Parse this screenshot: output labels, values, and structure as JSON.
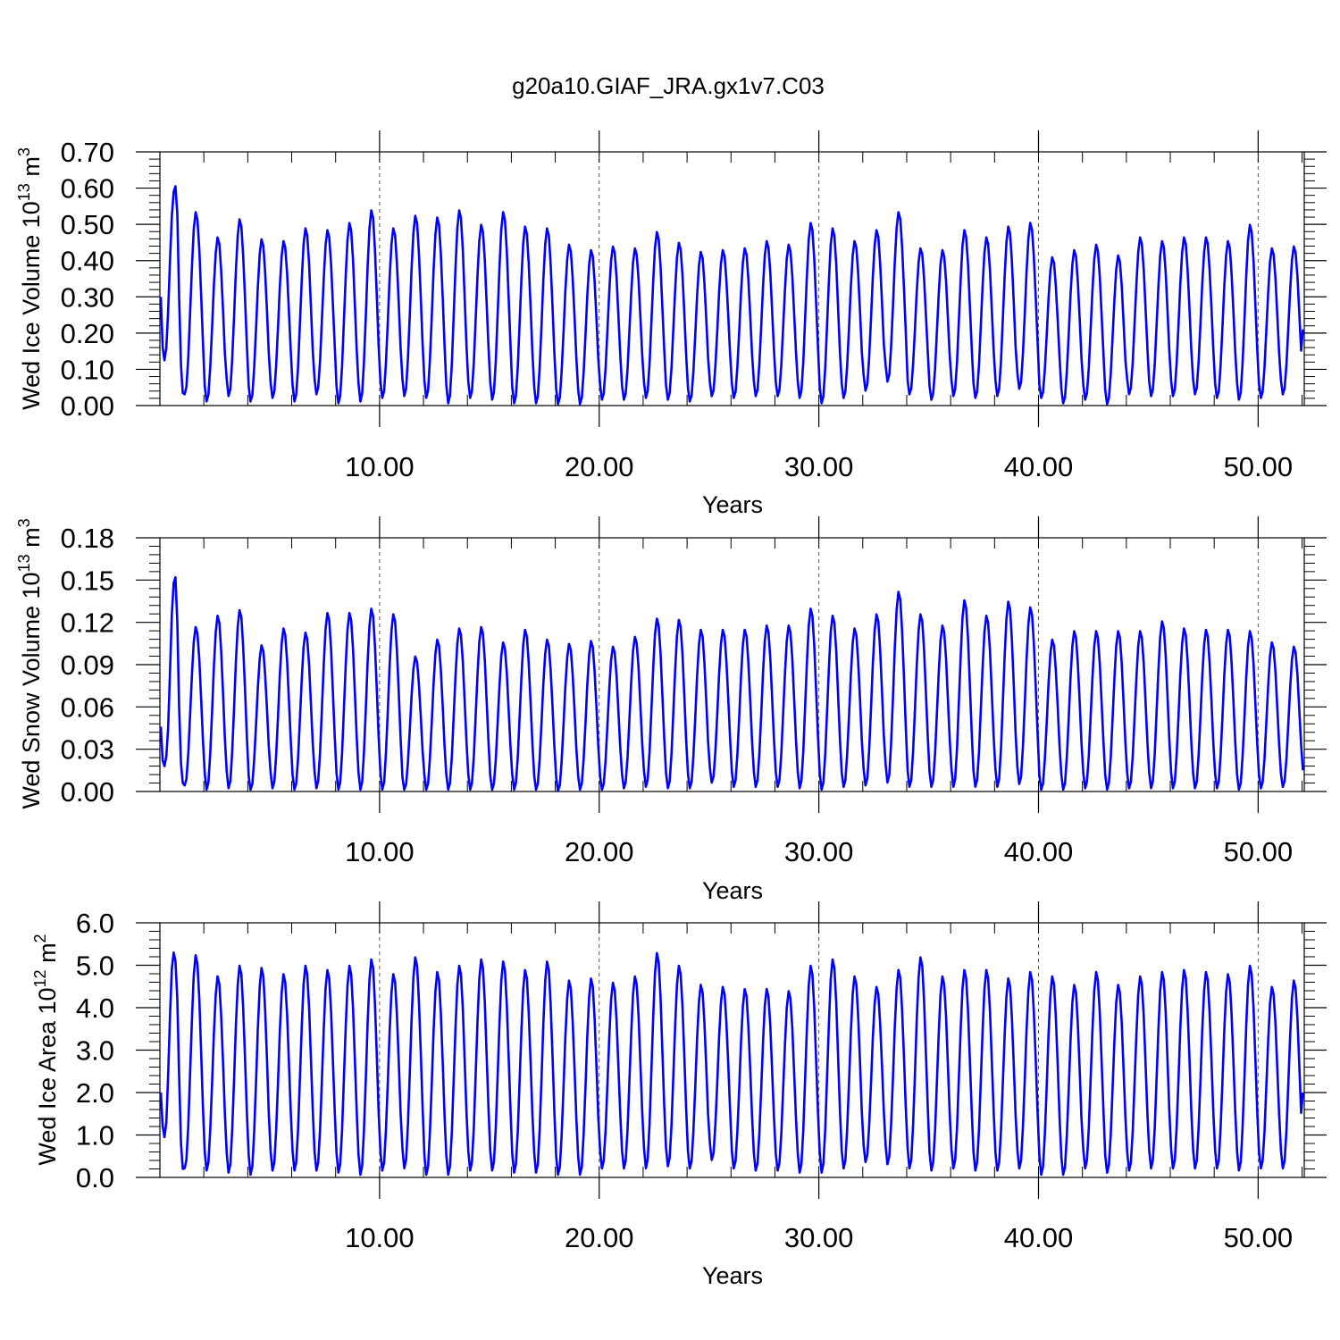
{
  "title": "g20a10.GIAF_JRA.gx1v7.C03",
  "colors": {
    "series": "#0000ff",
    "axis": "#000000",
    "refline": "#555555"
  },
  "chart_data": [
    {
      "type": "line",
      "ylabel_main": "Wed Ice Volume 10",
      "ylabel_exp": "13",
      "ylabel_unit": " m",
      "ylabel_unit_exp": "3",
      "xlabel": "Years",
      "xlim": [
        0,
        52.1
      ],
      "ylim": [
        0,
        0.7
      ],
      "xticks": [
        10,
        20,
        30,
        40,
        50
      ],
      "xtick_labels": [
        "10.00",
        "20.00",
        "30.00",
        "40.00",
        "50.00"
      ],
      "yticks": [
        0,
        0.1,
        0.2,
        0.3,
        0.4,
        0.5,
        0.6,
        0.7
      ],
      "ytick_labels": [
        "0.00",
        "0.10",
        "0.20",
        "0.30",
        "0.40",
        "0.50",
        "0.60",
        "0.70"
      ],
      "reference_lines_x": [
        10,
        20,
        30,
        40,
        50
      ],
      "series": [
        {
          "start": 0.0417,
          "step": 0.08333,
          "first": [
            0.3,
            0.16,
            0.125,
            0.16,
            0.26,
            0.4,
            0.52,
            0.59,
            0.605,
            0.53,
            0.3,
            0.11,
            0.035
          ],
          "annual_max": [
            0.605,
            0.535,
            0.465,
            0.515,
            0.46,
            0.455,
            0.49,
            0.485,
            0.505,
            0.54,
            0.49,
            0.525,
            0.52,
            0.54,
            0.5,
            0.535,
            0.495,
            0.49,
            0.445,
            0.43,
            0.44,
            0.435,
            0.48,
            0.45,
            0.425,
            0.43,
            0.435,
            0.455,
            0.445,
            0.505,
            0.49,
            0.455,
            0.485,
            0.535,
            0.435,
            0.43,
            0.485,
            0.465,
            0.495,
            0.505,
            0.41,
            0.43,
            0.445,
            0.415,
            0.465,
            0.455,
            0.465,
            0.465,
            0.455,
            0.5,
            0.435,
            0.44
          ],
          "annual_min": [
            0.125,
            0.03,
            0.01,
            0.025,
            0.01,
            0.02,
            0.01,
            0.03,
            0.005,
            0.01,
            0.02,
            0.025,
            0.02,
            0.005,
            0.02,
            0.015,
            0.005,
            0.005,
            0.003,
            0.003,
            0.015,
            0.015,
            0.02,
            0.015,
            0.01,
            0.025,
            0.02,
            0.025,
            0.025,
            0.02,
            0.005,
            0.02,
            0.04,
            0.065,
            0.03,
            0.015,
            0.025,
            0.02,
            0.025,
            0.045,
            0.02,
            0.005,
            0.015,
            0.003,
            0.03,
            0.025,
            0.025,
            0.03,
            0.02,
            0.015,
            0.02,
            0.03
          ],
          "last": 0.21
        }
      ]
    },
    {
      "type": "line",
      "ylabel_main": "Wed Snow Volume 10",
      "ylabel_exp": "13",
      "ylabel_unit": " m",
      "ylabel_unit_exp": "3",
      "xlabel": "Years",
      "xlim": [
        0,
        52.1
      ],
      "ylim": [
        0,
        0.18
      ],
      "xticks": [
        10,
        20,
        30,
        40,
        50
      ],
      "xtick_labels": [
        "10.00",
        "20.00",
        "30.00",
        "40.00",
        "50.00"
      ],
      "yticks": [
        0,
        0.03,
        0.06,
        0.09,
        0.12,
        0.15,
        0.18
      ],
      "ytick_labels": [
        "0.00",
        "0.03",
        "0.06",
        "0.09",
        "0.12",
        "0.15",
        "0.18"
      ],
      "reference_lines_x": [
        10,
        20,
        30,
        40,
        50
      ],
      "series": [
        {
          "start": 0.0417,
          "step": 0.08333,
          "first": [
            0.046,
            0.022,
            0.018,
            0.025,
            0.045,
            0.085,
            0.125,
            0.148,
            0.152,
            0.12,
            0.06,
            0.02,
            0.006
          ],
          "annual_max": [
            0.152,
            0.117,
            0.125,
            0.129,
            0.104,
            0.116,
            0.113,
            0.127,
            0.127,
            0.13,
            0.126,
            0.096,
            0.108,
            0.116,
            0.117,
            0.106,
            0.115,
            0.108,
            0.105,
            0.107,
            0.103,
            0.11,
            0.123,
            0.122,
            0.115,
            0.115,
            0.115,
            0.118,
            0.118,
            0.13,
            0.125,
            0.116,
            0.126,
            0.142,
            0.126,
            0.118,
            0.136,
            0.125,
            0.135,
            0.131,
            0.108,
            0.114,
            0.114,
            0.114,
            0.114,
            0.121,
            0.116,
            0.115,
            0.115,
            0.114,
            0.106,
            0.103
          ],
          "annual_min": [
            0.018,
            0.004,
            0.001,
            0.002,
            0.001,
            0.002,
            0.001,
            0.002,
            0.001,
            0.001,
            0.001,
            0.001,
            0.001,
            0.001,
            0.001,
            0.001,
            0.001,
            0.001,
            0.0,
            0.001,
            0.001,
            0.002,
            0.003,
            0.002,
            0.002,
            0.006,
            0.003,
            0.003,
            0.003,
            0.002,
            0.001,
            0.003,
            0.004,
            0.006,
            0.003,
            0.003,
            0.003,
            0.003,
            0.003,
            0.005,
            0.001,
            0.001,
            0.002,
            0.001,
            0.002,
            0.002,
            0.002,
            0.002,
            0.002,
            0.001,
            0.002,
            0.003
          ],
          "last": 0.015
        }
      ]
    },
    {
      "type": "line",
      "ylabel_main": "Wed Ice Area 10",
      "ylabel_exp": "12",
      "ylabel_unit": " m",
      "ylabel_unit_exp": "2",
      "xlabel": "Years",
      "xlim": [
        0,
        52.1
      ],
      "ylim": [
        0,
        6
      ],
      "xticks": [
        10,
        20,
        30,
        40,
        50
      ],
      "xtick_labels": [
        "10.00",
        "20.00",
        "30.00",
        "40.00",
        "50.00"
      ],
      "yticks": [
        0,
        1,
        2,
        3,
        4,
        5,
        6
      ],
      "ytick_labels": [
        "0.0",
        "1.0",
        "2.0",
        "3.0",
        "4.0",
        "5.0",
        "6.0"
      ],
      "reference_lines_x": [
        10,
        20,
        30,
        40,
        50
      ],
      "series": [
        {
          "start": 0.0417,
          "step": 0.08333,
          "first": [
            2.0,
            1.2,
            0.95,
            1.3,
            2.4,
            3.8,
            4.9,
            5.3,
            5.1,
            4.2,
            2.4,
            0.8,
            0.2
          ],
          "annual_max": [
            5.3,
            5.25,
            4.75,
            5.0,
            4.95,
            4.8,
            5.0,
            4.9,
            5.0,
            5.15,
            4.8,
            5.2,
            4.85,
            5.0,
            5.15,
            5.1,
            4.9,
            5.1,
            4.65,
            4.7,
            4.6,
            4.75,
            5.3,
            5.0,
            4.55,
            4.5,
            4.45,
            4.45,
            4.4,
            5.0,
            5.15,
            4.75,
            4.5,
            4.9,
            5.2,
            4.75,
            4.9,
            4.9,
            4.7,
            4.85,
            4.75,
            4.55,
            4.85,
            4.55,
            4.75,
            4.85,
            4.9,
            4.85,
            4.8,
            5.0,
            4.5,
            4.65
          ],
          "annual_min": [
            0.95,
            0.2,
            0.15,
            0.1,
            0.05,
            0.15,
            0.15,
            0.15,
            0.1,
            0.05,
            0.15,
            0.2,
            0.05,
            0.05,
            0.15,
            0.15,
            0.1,
            0.1,
            0.05,
            0.05,
            0.2,
            0.2,
            0.2,
            0.25,
            0.2,
            0.4,
            0.2,
            0.15,
            0.15,
            0.1,
            0.1,
            0.2,
            0.35,
            0.3,
            0.2,
            0.15,
            0.2,
            0.15,
            0.15,
            0.2,
            0.05,
            0.05,
            0.2,
            0.1,
            0.15,
            0.2,
            0.2,
            0.2,
            0.2,
            0.15,
            0.2,
            0.2
          ],
          "last": 2.0
        }
      ]
    }
  ]
}
